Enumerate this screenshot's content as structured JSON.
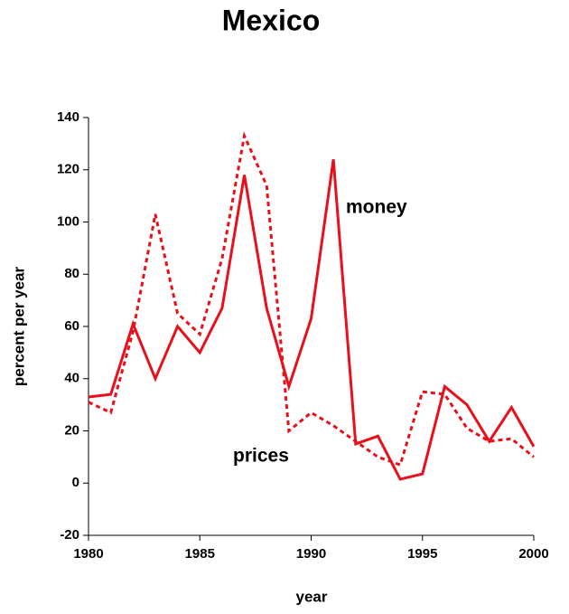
{
  "chart_data": {
    "type": "line",
    "title": "Mexico",
    "xlabel": "year",
    "ylabel": "percent per year",
    "x": [
      1980,
      1981,
      1982,
      1983,
      1984,
      1985,
      1986,
      1987,
      1988,
      1989,
      1990,
      1991,
      1992,
      1993,
      1994,
      1995,
      1996,
      1997,
      1998,
      1999,
      2000
    ],
    "series": [
      {
        "name": "money",
        "color": "#e8101a",
        "dash": false,
        "values": [
          33,
          34,
          61,
          40,
          60,
          50,
          67,
          118,
          67,
          37,
          63,
          124,
          15,
          18,
          1.5,
          3.5,
          37,
          30,
          16,
          29,
          14
        ]
      },
      {
        "name": "prices",
        "color": "#e8101a",
        "dash": true,
        "values": [
          31,
          27,
          58,
          103,
          65,
          57,
          86,
          133,
          114,
          20,
          27,
          22,
          16,
          10,
          7,
          35,
          34,
          21,
          16,
          17,
          10
        ]
      }
    ],
    "xlim": [
      1980,
      2000
    ],
    "xticks": [
      1980,
      1985,
      1990,
      1995,
      2000
    ],
    "ylim": [
      -20,
      140
    ],
    "yticks": [
      -20,
      0,
      20,
      40,
      60,
      80,
      100,
      120,
      140
    ]
  }
}
